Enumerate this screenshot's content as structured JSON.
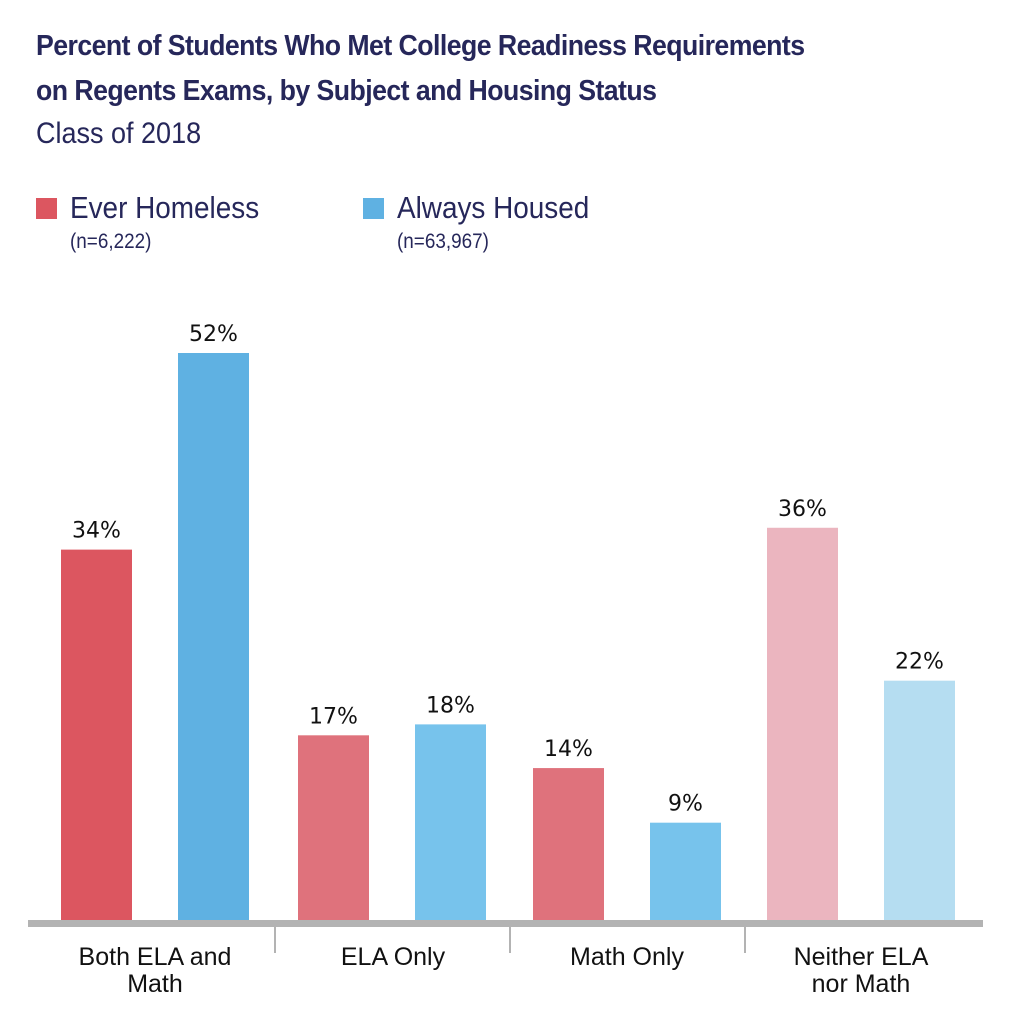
{
  "chart_data": {
    "type": "bar",
    "title": "Percent of Students Who Met College Readiness Requirements on Regents Exams, by Subject and Housing Status",
    "title_lines": [
      "Percent of Students Who Met College Readiness Requirements",
      "on Regents Exams, by Subject and Housing Status"
    ],
    "subtitle": "Class of 2018",
    "xlabel": "",
    "ylabel": "",
    "ylim": [
      0,
      52
    ],
    "grid": false,
    "legend_position": "top-left",
    "categories": [
      "Both ELA and Math",
      "ELA Only",
      "Math Only",
      "Neither ELA nor Math"
    ],
    "category_lines": [
      [
        "Both ELA and",
        "Math"
      ],
      [
        "ELA Only"
      ],
      [
        "Math Only"
      ],
      [
        "Neither ELA",
        "nor Math"
      ]
    ],
    "series": [
      {
        "name": "Ever Homeless",
        "n_label": "(n=6,222)",
        "values": [
          34,
          17,
          14,
          36
        ],
        "labels": [
          "34%",
          "17%",
          "14%",
          "36%"
        ],
        "colors": [
          "#dc5660",
          "#df727c",
          "#df727c",
          "#ebb5bf"
        ]
      },
      {
        "name": "Always Housed",
        "n_label": "(n=63,967)",
        "values": [
          52,
          18,
          9,
          22
        ],
        "labels": [
          "52%",
          "18%",
          "9%",
          "22%"
        ],
        "colors": [
          "#5fb1e2",
          "#77c3ec",
          "#77c3ec",
          "#b5ddf1"
        ]
      }
    ],
    "legend_colors": [
      "#dc5660",
      "#5fb1e2"
    ],
    "axis_color": "#b3b3b3",
    "text_color": "#26275a"
  }
}
